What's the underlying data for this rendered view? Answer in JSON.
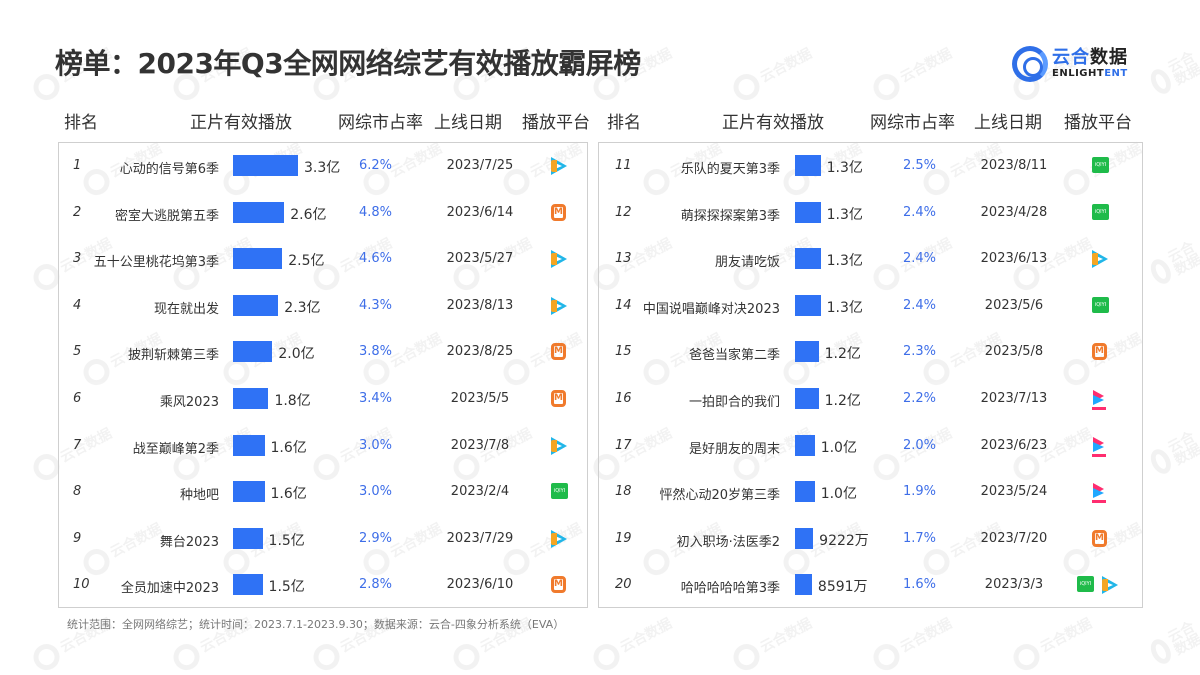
{
  "title": "榜单：2023年Q3全网网络综艺有效播放霸屏榜",
  "logo": {
    "cn_blue": "云合",
    "cn_dark": "数据",
    "en_dark": "ENLIGHT",
    "en_blue": "ENT"
  },
  "watermark": "云合数据",
  "headers": {
    "rank": "排名",
    "plays": "正片有效播放",
    "share": "网综市占率",
    "date": "上线日期",
    "platform": "播放平台"
  },
  "colors": {
    "bar": "#2f72f5",
    "share_text": "#3e6ee8",
    "iqiyi": "#1fbb4a",
    "mango": "#f07a2c",
    "tencent": "#21b6e8",
    "youku": "#ff2d6f"
  },
  "rows": [
    {
      "rank": "1",
      "name": "心动的信号第6季",
      "plays": "3.3亿",
      "share": "6.2%",
      "date": "2023/7/25",
      "platforms": [
        "tencent"
      ]
    },
    {
      "rank": "2",
      "name": "密室大逃脱第五季",
      "plays": "2.6亿",
      "share": "4.8%",
      "date": "2023/6/14",
      "platforms": [
        "mango"
      ]
    },
    {
      "rank": "3",
      "name": "五十公里桃花坞第3季",
      "plays": "2.5亿",
      "share": "4.6%",
      "date": "2023/5/27",
      "platforms": [
        "tencent"
      ]
    },
    {
      "rank": "4",
      "name": "现在就出发",
      "plays": "2.3亿",
      "share": "4.3%",
      "date": "2023/8/13",
      "platforms": [
        "tencent"
      ]
    },
    {
      "rank": "5",
      "name": "披荆斩棘第三季",
      "plays": "2.0亿",
      "share": "3.8%",
      "date": "2023/8/25",
      "platforms": [
        "mango"
      ]
    },
    {
      "rank": "6",
      "name": "乘风2023",
      "plays": "1.8亿",
      "share": "3.4%",
      "date": "2023/5/5",
      "platforms": [
        "mango"
      ]
    },
    {
      "rank": "7",
      "name": "战至巅峰第2季",
      "plays": "1.6亿",
      "share": "3.0%",
      "date": "2023/7/8",
      "platforms": [
        "tencent"
      ]
    },
    {
      "rank": "8",
      "name": "种地吧",
      "plays": "1.6亿",
      "share": "3.0%",
      "date": "2023/2/4",
      "platforms": [
        "iqiyi"
      ]
    },
    {
      "rank": "9",
      "name": "舞台2023",
      "plays": "1.5亿",
      "share": "2.9%",
      "date": "2023/7/29",
      "platforms": [
        "tencent"
      ]
    },
    {
      "rank": "10",
      "name": "全员加速中2023",
      "plays": "1.5亿",
      "share": "2.8%",
      "date": "2023/6/10",
      "platforms": [
        "mango"
      ]
    },
    {
      "rank": "11",
      "name": "乐队的夏天第3季",
      "plays": "1.3亿",
      "share": "2.5%",
      "date": "2023/8/11",
      "platforms": [
        "iqiyi"
      ]
    },
    {
      "rank": "12",
      "name": "萌探探探案第3季",
      "plays": "1.3亿",
      "share": "2.4%",
      "date": "2023/4/28",
      "platforms": [
        "iqiyi"
      ]
    },
    {
      "rank": "13",
      "name": "朋友请吃饭",
      "plays": "1.3亿",
      "share": "2.4%",
      "date": "2023/6/13",
      "platforms": [
        "tencent"
      ]
    },
    {
      "rank": "14",
      "name": "中国说唱巅峰对决2023",
      "plays": "1.3亿",
      "share": "2.4%",
      "date": "2023/5/6",
      "platforms": [
        "iqiyi"
      ]
    },
    {
      "rank": "15",
      "name": "爸爸当家第二季",
      "plays": "1.2亿",
      "share": "2.3%",
      "date": "2023/5/8",
      "platforms": [
        "mango"
      ]
    },
    {
      "rank": "16",
      "name": "一拍即合的我们",
      "plays": "1.2亿",
      "share": "2.2%",
      "date": "2023/7/13",
      "platforms": [
        "youku"
      ]
    },
    {
      "rank": "17",
      "name": "是好朋友的周末",
      "plays": "1.0亿",
      "share": "2.0%",
      "date": "2023/6/23",
      "platforms": [
        "youku"
      ]
    },
    {
      "rank": "18",
      "name": "怦然心动20岁第三季",
      "plays": "1.0亿",
      "share": "1.9%",
      "date": "2023/5/24",
      "platforms": [
        "youku"
      ]
    },
    {
      "rank": "19",
      "name": "初入职场·法医季2",
      "plays": "9222万",
      "share": "1.7%",
      "date": "2023/7/20",
      "platforms": [
        "mango"
      ]
    },
    {
      "rank": "20",
      "name": "哈哈哈哈哈第3季",
      "plays": "8591万",
      "share": "1.6%",
      "date": "2023/3/3",
      "platforms": [
        "iqiyi",
        "tencent"
      ]
    }
  ],
  "platform_names": {
    "tencent": "腾讯视频",
    "mango": "芒果TV",
    "iqiyi": "iQIYI",
    "youku": "优酷"
  },
  "footer": "统计范围：全网网络综艺；统计时间：2023.7.1-2023.9.30；数据来源：云合-四象分析系统（EVA）",
  "chart_data": {
    "type": "bar",
    "title": "榜单：2023年Q3全网网络综艺有效播放霸屏榜",
    "xlabel": "",
    "ylabel": "正片有效播放（亿）",
    "categories": [
      "心动的信号第6季",
      "密室大逃脱第五季",
      "五十公里桃花坞第3季",
      "现在就出发",
      "披荆斩棘第三季",
      "乘风2023",
      "战至巅峰第2季",
      "种地吧",
      "舞台2023",
      "全员加速中2023",
      "乐队的夏天第3季",
      "萌探探探案第3季",
      "朋友请吃饭",
      "中国说唱巅峰对决2023",
      "爸爸当家第二季",
      "一拍即合的我们",
      "是好朋友的周末",
      "怦然心动20岁第三季",
      "初入职场·法医季2",
      "哈哈哈哈哈第3季"
    ],
    "series": [
      {
        "name": "正片有效播放（亿）",
        "values": [
          3.3,
          2.6,
          2.5,
          2.3,
          2.0,
          1.8,
          1.6,
          1.6,
          1.5,
          1.5,
          1.3,
          1.3,
          1.3,
          1.3,
          1.2,
          1.2,
          1.0,
          1.0,
          0.9222,
          0.8591
        ]
      },
      {
        "name": "网综市占率（%）",
        "values": [
          6.2,
          4.8,
          4.6,
          4.3,
          3.8,
          3.4,
          3.0,
          3.0,
          2.9,
          2.8,
          2.5,
          2.4,
          2.4,
          2.4,
          2.3,
          2.2,
          2.0,
          1.9,
          1.7,
          1.6
        ]
      }
    ],
    "orientation": "horizontal",
    "grid": false,
    "legend": "none"
  }
}
